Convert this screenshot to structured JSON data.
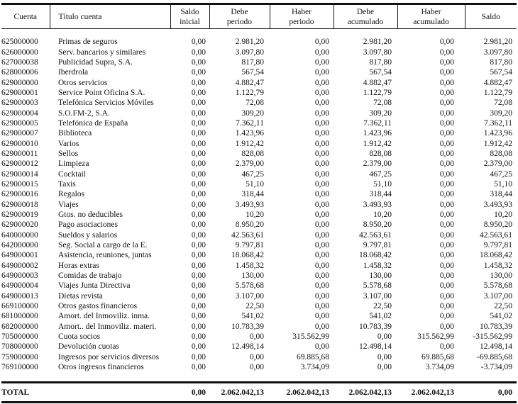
{
  "headers": {
    "cuenta": "Cuenta",
    "titulo": "Título cuenta",
    "saldo_inicial": [
      "Saldo",
      "inicial"
    ],
    "debe_periodo": [
      "Debe",
      "periodo"
    ],
    "haber_periodo": [
      "Haber",
      "periodo"
    ],
    "debe_acumulado": [
      "Debe",
      "acumulado"
    ],
    "haber_acumulado": [
      "Haber",
      "acumulado"
    ],
    "saldo": "Saldo"
  },
  "rows": [
    [
      "625000000",
      "Primas de seguros",
      "0,00",
      "2.981,20",
      "0,00",
      "2.981,20",
      "0,00",
      "2.981,20"
    ],
    [
      "626000000",
      "Serv. bancarios y similares",
      "0,00",
      "3.097,80",
      "0,00",
      "3.097,80",
      "0,00",
      "3.097,80"
    ],
    [
      "627000038",
      "Publicidad Supra, S.A.",
      "0,00",
      "817,80",
      "0,00",
      "817,80",
      "0,00",
      "817,80"
    ],
    [
      "628000006",
      "Iberdrola",
      "0,00",
      "567,54",
      "0,00",
      "567,54",
      "0,00",
      "567,54"
    ],
    [
      "629000000",
      "Otros servicios",
      "0,00",
      "4.882,47",
      "0,00",
      "4.882,47",
      "0,00",
      "4.882,47"
    ],
    [
      "629000001",
      "Service Point Oficina S.A.",
      "0,00",
      "1.122,79",
      "0,00",
      "1.122,79",
      "0,00",
      "1.122,79"
    ],
    [
      "629000003",
      "Telefónica Servicios Móviles",
      "0,00",
      "72,08",
      "0,00",
      "72,08",
      "0,00",
      "72,08"
    ],
    [
      "629000004",
      "S.O.FM-2, S.A.",
      "0,00",
      "309,20",
      "0,00",
      "309,20",
      "0,00",
      "309,20"
    ],
    [
      "629000005",
      "Telefónica de España",
      "0,00",
      "7.362,11",
      "0,00",
      "7.362,11",
      "0,00",
      "7.362,11"
    ],
    [
      "629000007",
      "Biblioteca",
      "0,00",
      "1.423,96",
      "0,00",
      "1.423,96",
      "0,00",
      "1.423,96"
    ],
    [
      "629000010",
      "Varios",
      "0,00",
      "1.912,42",
      "0,00",
      "1.912,42",
      "0,00",
      "1.912,42"
    ],
    [
      "629000011",
      "Sellos",
      "0,00",
      "828,08",
      "0,00",
      "828,08",
      "0,00",
      "828,08"
    ],
    [
      "629000012",
      "Limpieza",
      "0,00",
      "2.379,00",
      "0,00",
      "2.379,00",
      "0,00",
      "2.379,00"
    ],
    [
      "629000014",
      "Cocktail",
      "0,00",
      "467,25",
      "0,00",
      "467,25",
      "0,00",
      "467,25"
    ],
    [
      "629000015",
      "Taxis",
      "0,00",
      "51,10",
      "0,00",
      "51,10",
      "0,00",
      "51,10"
    ],
    [
      "629000016",
      "Regalos",
      "0,00",
      "318,44",
      "0,00",
      "318,44",
      "0,00",
      "318,44"
    ],
    [
      "629000018",
      "Viajes",
      "0,00",
      "3.493,93",
      "0,00",
      "3.493,93",
      "0,00",
      "3.493,93"
    ],
    [
      "629000019",
      "Gtos. no deducibles",
      "0,00",
      "10,20",
      "0,00",
      "10,20",
      "0,00",
      "10,20"
    ],
    [
      "629000020",
      "Pago asociaciones",
      "0,00",
      "8.950,20",
      "0,00",
      "8.950,20",
      "0,00",
      "8.950,20"
    ],
    [
      "640000000",
      "Sueldos y salarios",
      "0,00",
      "42.563,61",
      "0,00",
      "42.563,61",
      "0,00",
      "42.563,61"
    ],
    [
      "642000000",
      "Seg. Social a cargo de la E.",
      "0,00",
      "9.797,81",
      "0,00",
      "9.797,81",
      "0,00",
      "9.797,81"
    ],
    [
      "649000001",
      "Asistencia, reuniones, juntas",
      "0,00",
      "18.068,42",
      "0,00",
      "18.068,42",
      "0,00",
      "18.068,42"
    ],
    [
      "649000002",
      "Horas extras",
      "0,00",
      "1.458,32",
      "0,00",
      "1.458,32",
      "0,00",
      "1.458,32"
    ],
    [
      "649000003",
      "Comidas de trabajo",
      "0,00",
      "130,00",
      "0,00",
      "130,00",
      "0,00",
      "130,00"
    ],
    [
      "649000004",
      "Viajes Junta Directiva",
      "0,00",
      "5.578,68",
      "0,00",
      "5.578,68",
      "0,00",
      "5.578,68"
    ],
    [
      "649000013",
      "Dietas revista",
      "0,00",
      "3.107,00",
      "0,00",
      "3.107,00",
      "0,00",
      "3.107,00"
    ],
    [
      "669100000",
      "Otros gastos financieros",
      "0,00",
      "22,50",
      "0,00",
      "22,50",
      "0,00",
      "22,50"
    ],
    [
      "681000000",
      "Amort. del Inmoviliz. inma.",
      "0,00",
      "541,02",
      "0,00",
      "541,02",
      "0,00",
      "541,02"
    ],
    [
      "682000000",
      "Amort.. del Inmoviliz. materi.",
      "0,00",
      "10.783,39",
      "0,00",
      "10.783,39",
      "0,00",
      "10.783,39"
    ],
    [
      "705000000",
      "Cuota socios",
      "0,00",
      "0,00",
      "315.562,99",
      "0,00",
      "315.562,99",
      "-315.562,99"
    ],
    [
      "708000000",
      "Devolución cuotas",
      "0,00",
      "12.498,14",
      "0,00",
      "12.498,14",
      "0,00",
      "12.498,14"
    ],
    [
      "759000000",
      "Ingresos por servicios diversos",
      "0,00",
      "0,00",
      "69.885,68",
      "0,00",
      "69.885,68",
      "-69.885,68"
    ],
    [
      "769100000",
      "Otros ingresos financieros",
      "0,00",
      "0,00",
      "3.734,09",
      "0,00",
      "3.734,09",
      "-3.734,09"
    ]
  ],
  "total": {
    "label": "TOTAL",
    "saldo_inicial": "0,00",
    "debe_periodo": "2.062.042,13",
    "haber_periodo": "2.062.042,13",
    "debe_acumulado": "2.062.042,13",
    "haber_acumulado": "2.062.042,13",
    "saldo": "0,00"
  }
}
